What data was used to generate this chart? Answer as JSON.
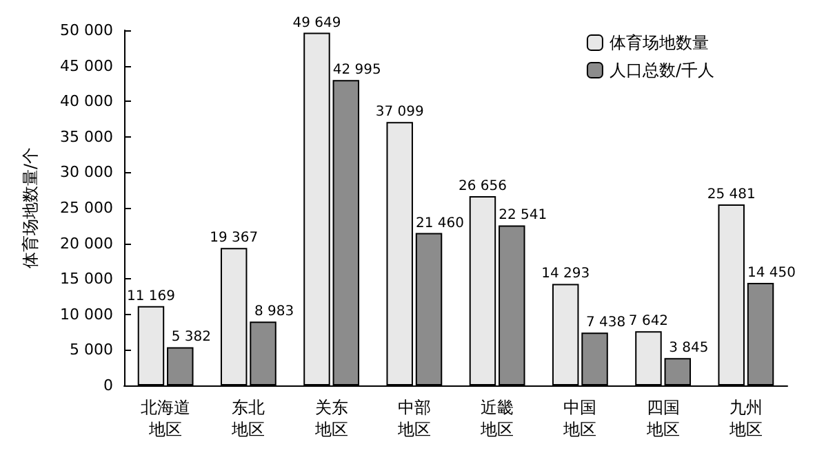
{
  "chart_data": {
    "type": "bar",
    "ylabel": "体育场地数量/个",
    "categories": [
      "北海道地区",
      "东北地区",
      "关东地区",
      "中部地区",
      "近畿地区",
      "中国地区",
      "四国地区",
      "九州地区"
    ],
    "series": [
      {
        "name": "体育场地数量",
        "color": "#e8e8e8",
        "values": [
          11169,
          19367,
          49649,
          37099,
          26656,
          14293,
          7642,
          25481
        ],
        "value_labels": [
          "11 169",
          "19 367",
          "49 649",
          "37 099",
          "26 656",
          "14 293",
          "7 642",
          "25 481"
        ]
      },
      {
        "name": "人口总数/千人",
        "color": "#8c8c8c",
        "values": [
          5382,
          8983,
          42995,
          21460,
          22541,
          7438,
          3845,
          14450
        ],
        "value_labels": [
          "5 382",
          "8 983",
          "42 995",
          "21 460",
          "22 541",
          "7 438",
          "3 845",
          "14 450"
        ]
      }
    ],
    "ylim": [
      0,
      50000
    ],
    "yticks": [
      0,
      {
        "value": 5000,
        "label": "5 000"
      },
      {
        "value": 10000,
        "label": "10 000"
      },
      {
        "value": 15000,
        "label": "15 000"
      },
      {
        "value": 20000,
        "label": "20 000"
      },
      {
        "value": 25000,
        "label": "25 000"
      },
      {
        "value": 30000,
        "label": "30 000"
      },
      {
        "value": 35000,
        "label": "35 000"
      },
      {
        "value": 40000,
        "label": "40 000"
      },
      {
        "value": 45000,
        "label": "45 000"
      },
      {
        "value": 50000,
        "label": "50 000"
      }
    ],
    "grid": false,
    "legend": "top right"
  }
}
